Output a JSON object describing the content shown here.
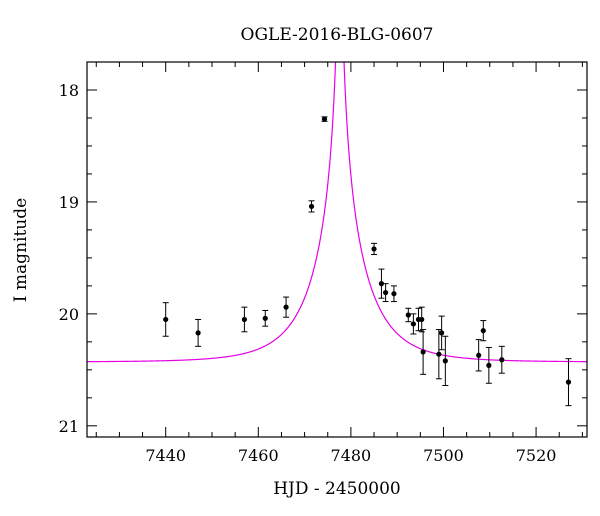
{
  "chart_data": {
    "type": "scatter",
    "title": "OGLE-2016-BLG-0607",
    "xlabel": "HJD - 2450000",
    "ylabel": "I magnitude",
    "xlim": [
      7423,
      7531
    ],
    "ylim": [
      21.1,
      17.75
    ],
    "y_inverted": true,
    "x_ticks": [
      7440,
      7460,
      7480,
      7500,
      7520
    ],
    "y_ticks": [
      18,
      19,
      20,
      21
    ],
    "grid": false,
    "colors": {
      "points": "#000000",
      "model": "#e600e6",
      "axes": "#000000"
    },
    "points": [
      {
        "x": 7440.0,
        "y": 20.05,
        "err": 0.15
      },
      {
        "x": 7447.0,
        "y": 20.17,
        "err": 0.12
      },
      {
        "x": 7457.0,
        "y": 20.05,
        "err": 0.11
      },
      {
        "x": 7461.5,
        "y": 20.04,
        "err": 0.07
      },
      {
        "x": 7466.0,
        "y": 19.94,
        "err": 0.09
      },
      {
        "x": 7471.5,
        "y": 19.04,
        "err": 0.05
      },
      {
        "x": 7474.3,
        "y": 18.26,
        "err": 0.02
      },
      {
        "x": 7485.0,
        "y": 19.42,
        "err": 0.05
      },
      {
        "x": 7486.6,
        "y": 19.73,
        "err": 0.13
      },
      {
        "x": 7487.5,
        "y": 19.81,
        "err": 0.08
      },
      {
        "x": 7489.3,
        "y": 19.82,
        "err": 0.07
      },
      {
        "x": 7492.4,
        "y": 20.01,
        "err": 0.06
      },
      {
        "x": 7493.5,
        "y": 20.09,
        "err": 0.09
      },
      {
        "x": 7494.6,
        "y": 20.05,
        "err": 0.1
      },
      {
        "x": 7495.3,
        "y": 20.05,
        "err": 0.11
      },
      {
        "x": 7495.6,
        "y": 20.34,
        "err": 0.2
      },
      {
        "x": 7499.0,
        "y": 20.36,
        "err": 0.22
      },
      {
        "x": 7499.6,
        "y": 20.17,
        "err": 0.15
      },
      {
        "x": 7500.4,
        "y": 20.42,
        "err": 0.22
      },
      {
        "x": 7507.6,
        "y": 20.37,
        "err": 0.14
      },
      {
        "x": 7508.6,
        "y": 20.15,
        "err": 0.09
      },
      {
        "x": 7509.8,
        "y": 20.46,
        "err": 0.16
      },
      {
        "x": 7512.6,
        "y": 20.41,
        "err": 0.12
      },
      {
        "x": 7527.0,
        "y": 20.61,
        "err": 0.21
      }
    ],
    "model": {
      "type": "point-lens",
      "t0": 7477.6,
      "tE": 11.0,
      "u0": 0.0145,
      "baseline_mag": 20.43
    }
  }
}
